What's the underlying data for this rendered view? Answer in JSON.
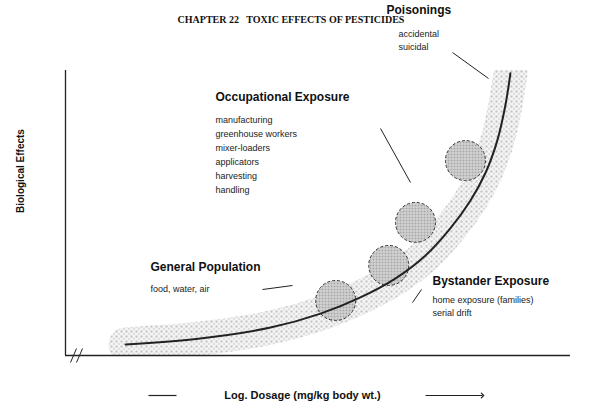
{
  "chart_data": {
    "type": "line",
    "title": "CHAPTER 22   TOXIC EFFECTS OF PESTICIDES",
    "x_label": "Log. Dosage (mg/kg body wt.)",
    "y_label": "Biological Effects",
    "x": [
      1.19,
      2.67,
      4.06,
      5.05,
      5.84,
      6.53,
      7.13,
      7.62,
      8.02,
      8.32,
      8.55,
      8.71,
      8.81
    ],
    "values": [
      0.39,
      0.6,
      0.98,
      1.47,
      2.04,
      2.7,
      3.51,
      4.46,
      5.44,
      6.42,
      7.54,
      8.77,
      9.9
    ],
    "color": "#222222",
    "xlim": [
      0,
      10
    ],
    "ylim": [
      0,
      10
    ],
    "xticks": [],
    "yticks": [],
    "tick_labels": false,
    "clusters": {
      "x": [
        5.35,
        6.4,
        6.93,
        7.92
      ],
      "y": [
        1.93,
        3.16,
        4.67,
        6.84
      ]
    },
    "annotations": [
      {
        "title": "Poisonings",
        "items": [
          "accidental",
          "suicidal"
        ]
      },
      {
        "title": "Occupational Exposure",
        "items": [
          "manufacturing",
          "greenhouse workers",
          "mixer-loaders",
          "applicators",
          "harvesting",
          "handling"
        ]
      },
      {
        "title": "General Population",
        "items": [
          "food, water, air"
        ]
      },
      {
        "title": "Bystander Exposure",
        "items": [
          "home exposure (families)",
          "serial drift"
        ]
      }
    ]
  }
}
